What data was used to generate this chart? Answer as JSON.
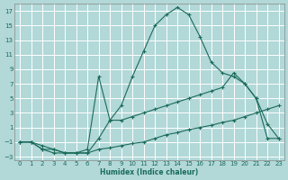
{
  "xlabel": "Humidex (Indice chaleur)",
  "background_color": "#b2d8d8",
  "grid_color": "#ffffff",
  "line_color": "#1a6b5a",
  "xlim": [
    -0.5,
    23.5
  ],
  "ylim": [
    -3.5,
    18
  ],
  "xticks": [
    0,
    1,
    2,
    3,
    4,
    5,
    6,
    7,
    8,
    9,
    10,
    11,
    12,
    13,
    14,
    15,
    16,
    17,
    18,
    19,
    20,
    21,
    22,
    23
  ],
  "yticks": [
    -3,
    -1,
    1,
    3,
    5,
    7,
    9,
    11,
    13,
    15,
    17
  ],
  "line1_x": [
    0,
    1,
    2,
    3,
    4,
    5,
    6,
    7,
    8,
    9,
    10,
    11,
    12,
    13,
    14,
    15,
    16,
    17,
    18,
    19,
    20,
    21,
    22,
    23
  ],
  "line1_y": [
    -1,
    -1,
    -2,
    -2.5,
    -2.5,
    -2.5,
    -2.5,
    -0.5,
    2,
    4,
    8,
    11.5,
    15,
    16.5,
    17.5,
    16.5,
    13.5,
    10,
    8.5,
    8,
    7,
    5,
    1.5,
    -0.5
  ],
  "line2_x": [
    0,
    1,
    2,
    3,
    4,
    5,
    6,
    7,
    8,
    9,
    10,
    11,
    12,
    13,
    14,
    15,
    16,
    17,
    18,
    19,
    20,
    21,
    22,
    23
  ],
  "line2_y": [
    -1,
    -1,
    -1.5,
    -2,
    -2.5,
    -2.5,
    -2,
    8,
    2,
    2,
    2.5,
    3,
    3.5,
    4,
    4.5,
    5,
    5.5,
    6,
    6.5,
    8.5,
    7,
    5,
    -0.5,
    -0.5
  ],
  "line3_x": [
    0,
    1,
    2,
    3,
    4,
    5,
    6,
    7,
    8,
    9,
    10,
    11,
    12,
    13,
    14,
    15,
    16,
    17,
    18,
    19,
    20,
    21,
    22,
    23
  ],
  "line3_y": [
    -1,
    -1,
    -2,
    -2,
    -2.5,
    -2.5,
    -2.5,
    -2,
    -1.8,
    -1.5,
    -1.2,
    -1,
    -0.5,
    0,
    0.3,
    0.7,
    1,
    1.3,
    1.7,
    2,
    2.5,
    3,
    3.5,
    4
  ]
}
